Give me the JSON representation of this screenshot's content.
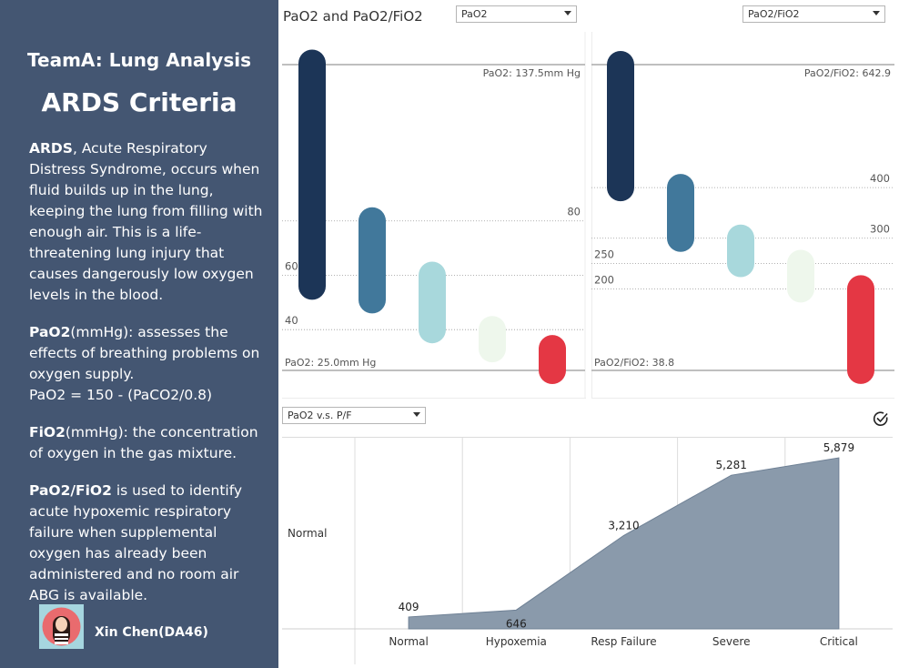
{
  "sidebar": {
    "team_title": "TeamA: Lung Analysis",
    "main_title": "ARDS Criteria",
    "paragraphs": [
      {
        "bold": "ARDS",
        "text": ", Acute Respiratory Distress Syndrome, occurs when fluid builds up in the lung, keeping the lung from filling with enough air. This is a life-threatening lung injury that causes dangerously low oxygen levels in the blood."
      },
      {
        "bold": "PaO2",
        "text": "(mmHg): assesses the effects of breathing problems on oxygen supply.",
        "formula": "PaO2 = 150 - (PaCO2/0.8)"
      },
      {
        "bold": "FiO2",
        "text": "(mmHg): the concentration of oxygen in the gas mixture."
      },
      {
        "bold": "PaO2/FiO2",
        "text": " is used to identify acute hypoxemic respiratory failure when supplemental oxygen has already been administered and no room air ABG is available."
      }
    ],
    "author": "Xin Chen(DA46)",
    "avatar_icon": "person-avatar-icon"
  },
  "panels": {
    "top_title": "PaO2 and PaO2/FiO2",
    "pao2_dropdown": "PaO2",
    "pf_dropdown": "PaO2/FiO2",
    "bottom_dropdown": "PaO2 v.s. P/F",
    "check_icon": "check-circle-icon"
  },
  "colors": {
    "sidebar_bg": "#445672",
    "normal": "#1c3557",
    "hypoxemia": "#41789b",
    "resp_failure": "#a8d8dc",
    "severe": "#eef7ec",
    "critical": "#e43744",
    "area_fill": "#8a9aab",
    "area_stroke": "#6f8195"
  },
  "chart_data": [
    {
      "type": "bar",
      "subtype": "range",
      "ylim": [
        25.0,
        137.5
      ],
      "max_label": "PaO2: 137.5mm Hg",
      "min_label": "PaO2: 25.0mm Hg",
      "reference_lines": [
        80,
        60,
        40
      ],
      "ranges": [
        {
          "low": 56,
          "high": 138
        },
        {
          "low": 51,
          "high": 80
        },
        {
          "low": 40,
          "high": 60
        },
        {
          "low": 33,
          "high": 40
        },
        {
          "low": 25,
          "high": 33
        }
      ]
    },
    {
      "type": "bar",
      "subtype": "range",
      "ylim": [
        38.8,
        642.9
      ],
      "max_label": "PaO2/FiO2: 642.9",
      "min_label": "PaO2/FiO2: 38.8",
      "reference_lines": [
        400,
        300,
        250,
        200
      ],
      "ranges": [
        {
          "low": 400,
          "high": 643
        },
        {
          "low": 300,
          "high": 400
        },
        {
          "low": 250,
          "high": 300
        },
        {
          "low": 200,
          "high": 250
        },
        {
          "low": 39,
          "high": 200
        }
      ]
    },
    {
      "type": "area",
      "categories": [
        "Normal",
        "Hypoxemia",
        "Resp Failure",
        "Severe",
        "Critical"
      ],
      "values": [
        409,
        646,
        3210,
        5281,
        5879
      ],
      "ylabel": "Normal",
      "ylim": [
        0,
        6600
      ]
    }
  ]
}
